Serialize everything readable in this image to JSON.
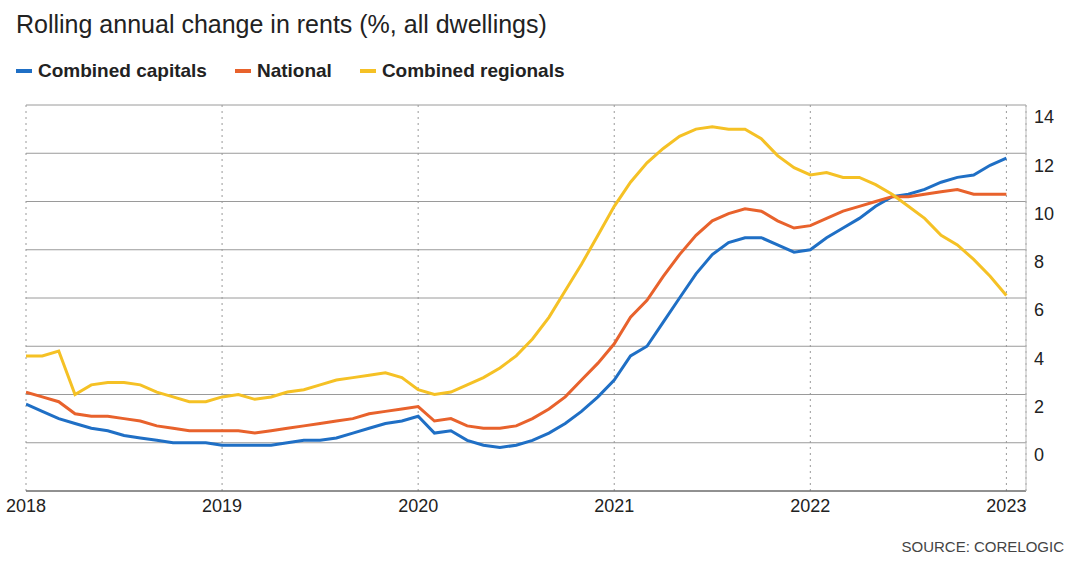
{
  "chart_data": {
    "type": "line",
    "title": "Rolling annual change in rents (%, all dwellings)",
    "source": "SOURCE: CORELOGIC",
    "x": [
      2018,
      2018.083,
      2018.167,
      2018.25,
      2018.333,
      2018.417,
      2018.5,
      2018.583,
      2018.667,
      2018.75,
      2018.833,
      2018.917,
      2019,
      2019.083,
      2019.167,
      2019.25,
      2019.333,
      2019.417,
      2019.5,
      2019.583,
      2019.667,
      2019.75,
      2019.833,
      2019.917,
      2020,
      2020.083,
      2020.167,
      2020.25,
      2020.333,
      2020.417,
      2020.5,
      2020.583,
      2020.667,
      2020.75,
      2020.833,
      2020.917,
      2021,
      2021.083,
      2021.167,
      2021.25,
      2021.333,
      2021.417,
      2021.5,
      2021.583,
      2021.667,
      2021.75,
      2021.833,
      2021.917,
      2022,
      2022.083,
      2022.167,
      2022.25,
      2022.333,
      2022.417,
      2022.5,
      2022.583,
      2022.667,
      2022.75,
      2022.833,
      2022.917,
      2023
    ],
    "series": [
      {
        "name": "Combined capitals",
        "color": "#1f6fc5",
        "values": [
          1.6,
          1.3,
          1.0,
          0.8,
          0.6,
          0.5,
          0.3,
          0.2,
          0.1,
          0.0,
          0.0,
          0.0,
          -0.1,
          -0.1,
          -0.1,
          -0.1,
          0.0,
          0.1,
          0.1,
          0.2,
          0.4,
          0.6,
          0.8,
          0.9,
          1.1,
          0.4,
          0.5,
          0.1,
          -0.1,
          -0.2,
          -0.1,
          0.1,
          0.4,
          0.8,
          1.3,
          1.9,
          2.6,
          3.6,
          4.0,
          5.0,
          6.0,
          7.0,
          7.8,
          8.3,
          8.5,
          8.5,
          8.2,
          7.9,
          8.0,
          8.5,
          8.9,
          9.3,
          9.8,
          10.2,
          10.3,
          10.5,
          10.8,
          11.0,
          11.1,
          11.5,
          11.8
        ]
      },
      {
        "name": "National",
        "color": "#e8622c",
        "values": [
          2.1,
          1.9,
          1.7,
          1.2,
          1.1,
          1.1,
          1.0,
          0.9,
          0.7,
          0.6,
          0.5,
          0.5,
          0.5,
          0.5,
          0.4,
          0.5,
          0.6,
          0.7,
          0.8,
          0.9,
          1.0,
          1.2,
          1.3,
          1.4,
          1.5,
          0.9,
          1.0,
          0.7,
          0.6,
          0.6,
          0.7,
          1.0,
          1.4,
          1.9,
          2.6,
          3.3,
          4.1,
          5.2,
          5.9,
          6.9,
          7.8,
          8.6,
          9.2,
          9.5,
          9.7,
          9.6,
          9.2,
          8.9,
          9.0,
          9.3,
          9.6,
          9.8,
          10.0,
          10.2,
          10.2,
          10.3,
          10.4,
          10.5,
          10.3,
          10.3,
          10.3
        ]
      },
      {
        "name": "Combined regionals",
        "color": "#f5c125",
        "values": [
          3.6,
          3.6,
          3.8,
          2.0,
          2.4,
          2.5,
          2.5,
          2.4,
          2.1,
          1.9,
          1.7,
          1.7,
          1.9,
          2.0,
          1.8,
          1.9,
          2.1,
          2.2,
          2.4,
          2.6,
          2.7,
          2.8,
          2.9,
          2.7,
          2.2,
          2.0,
          2.1,
          2.4,
          2.7,
          3.1,
          3.6,
          4.3,
          5.2,
          6.3,
          7.4,
          8.6,
          9.8,
          10.8,
          11.6,
          12.2,
          12.7,
          13.0,
          13.1,
          13.0,
          13.0,
          12.6,
          11.9,
          11.4,
          11.1,
          11.2,
          11.0,
          11.0,
          10.7,
          10.3,
          9.8,
          9.3,
          8.6,
          8.2,
          7.6,
          6.9,
          6.1
        ]
      }
    ],
    "xlim": [
      2018,
      2023.1
    ],
    "xticks": [
      2018,
      2019,
      2020,
      2021,
      2022,
      2023
    ],
    "ylim": [
      -2,
      14
    ],
    "yticks": [
      0,
      2,
      4,
      6,
      8,
      10,
      12,
      14
    ],
    "grid": true,
    "legend": "top-left"
  }
}
